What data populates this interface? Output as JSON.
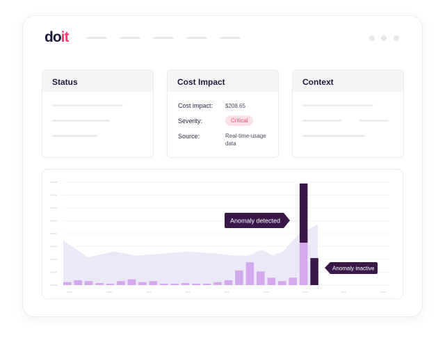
{
  "logo": {
    "text_a": "do",
    "text_b": "it"
  },
  "cards": {
    "status": {
      "title": "Status"
    },
    "cost": {
      "title": "Cost Impact",
      "rows": [
        {
          "label": "Cost impact:",
          "value": "$208.65"
        },
        {
          "label": "Severity:",
          "value": "Critical"
        },
        {
          "label": "Source:",
          "value": "Real-time-usage data"
        }
      ]
    },
    "context": {
      "title": "Context"
    }
  },
  "chart_data": {
    "type": "bar",
    "ylim": [
      0,
      8
    ],
    "grid": true,
    "colors": {
      "bar": "#d4a8ec",
      "anomaly": "#3b1749",
      "area": "#ebe8f7"
    },
    "bars": [
      0.23,
      0.38,
      0.31,
      0.16,
      0.11,
      0.31,
      0.45,
      0.23,
      0.31,
      0.11,
      0.11,
      0.16,
      0.11,
      0.11,
      0.23,
      0.38,
      1.14,
      1.77,
      1.06,
      0.58,
      0.31,
      0.58,
      3.3,
      0
    ],
    "anomaly": [
      0,
      0,
      0,
      0,
      0,
      0,
      0,
      0,
      0,
      0,
      0,
      0,
      0,
      0,
      0,
      0,
      0,
      0,
      0,
      0,
      0,
      0,
      4.6,
      2.1
    ],
    "expected_band": {
      "x": [
        0,
        2.3,
        4.7,
        6.9,
        11.4,
        14.1,
        15.9,
        17.2,
        18.5,
        19.5,
        20.5,
        21.9,
        22.8,
        23.7
      ],
      "y": [
        3.47,
        2.16,
        2.61,
        2.29,
        2.61,
        2.47,
        2.29,
        2.29,
        2.76,
        2.29,
        2.65,
        3.96,
        4.32,
        4.72
      ]
    },
    "annotations": [
      {
        "text": "Anomaly detected"
      },
      {
        "text": "Anomaly inactive"
      }
    ]
  }
}
